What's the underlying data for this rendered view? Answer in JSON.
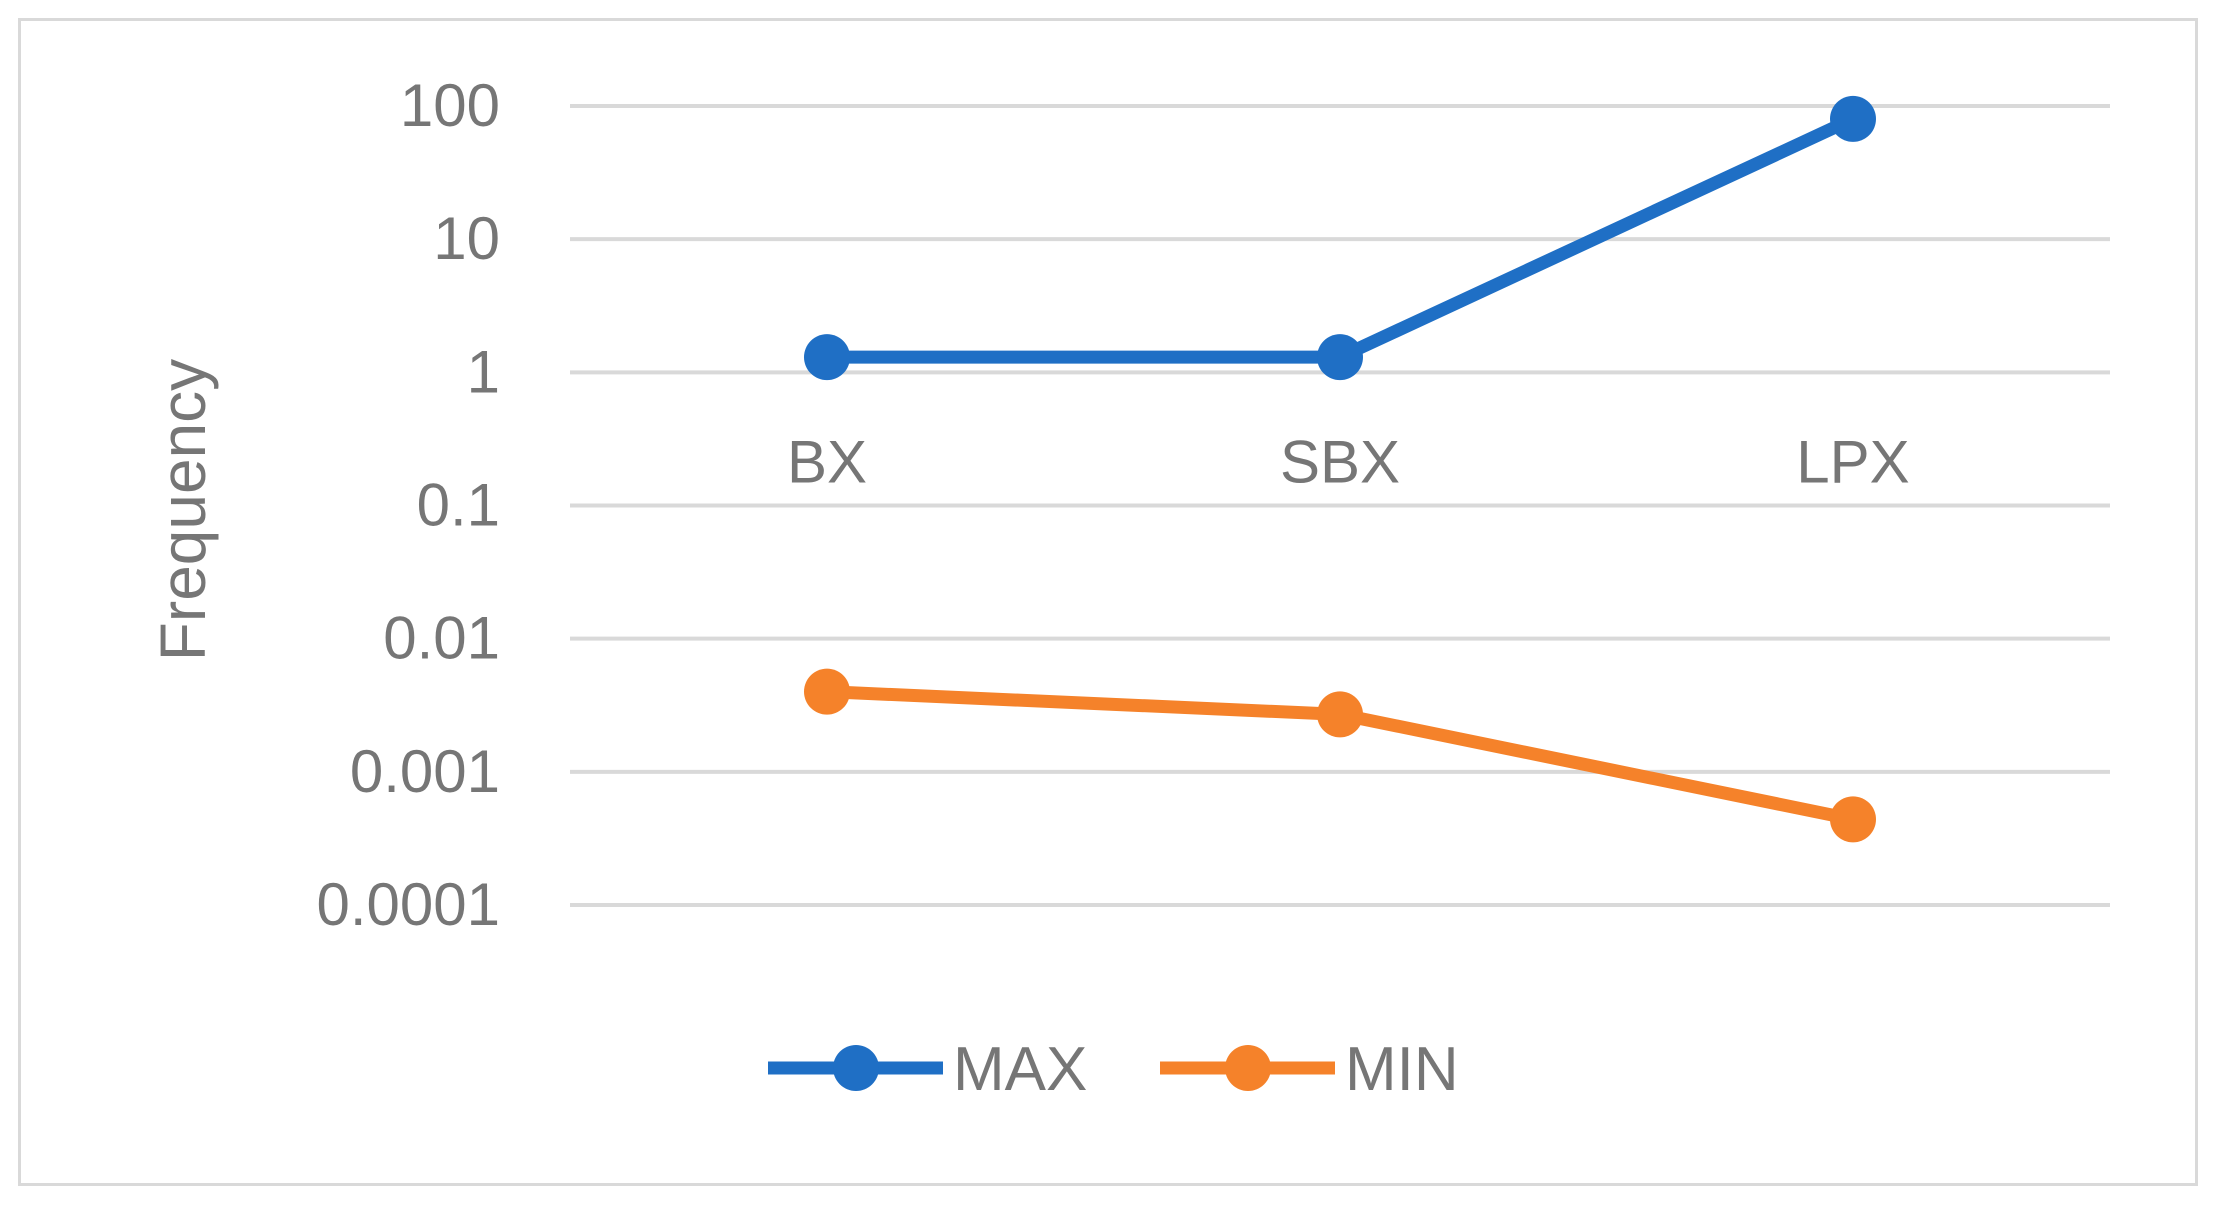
{
  "chart_data": {
    "type": "line",
    "title": "",
    "xlabel": "",
    "ylabel": "Frequency",
    "yscale": "log",
    "ylim": [
      0.0001,
      100
    ],
    "yticks": [
      "100",
      "10",
      "1",
      "0.1",
      "0.01",
      "0.001",
      "0.0001"
    ],
    "categories": [
      "BX",
      "SBX",
      "LPX"
    ],
    "series": [
      {
        "name": "MAX",
        "color": "#1f6fc5",
        "values": [
          1.3,
          1.3,
          80
        ]
      },
      {
        "name": "MIN",
        "color": "#f5822a",
        "values": [
          0.004,
          0.0027,
          0.00044
        ]
      }
    ],
    "grid": true,
    "legend": "bottom"
  }
}
